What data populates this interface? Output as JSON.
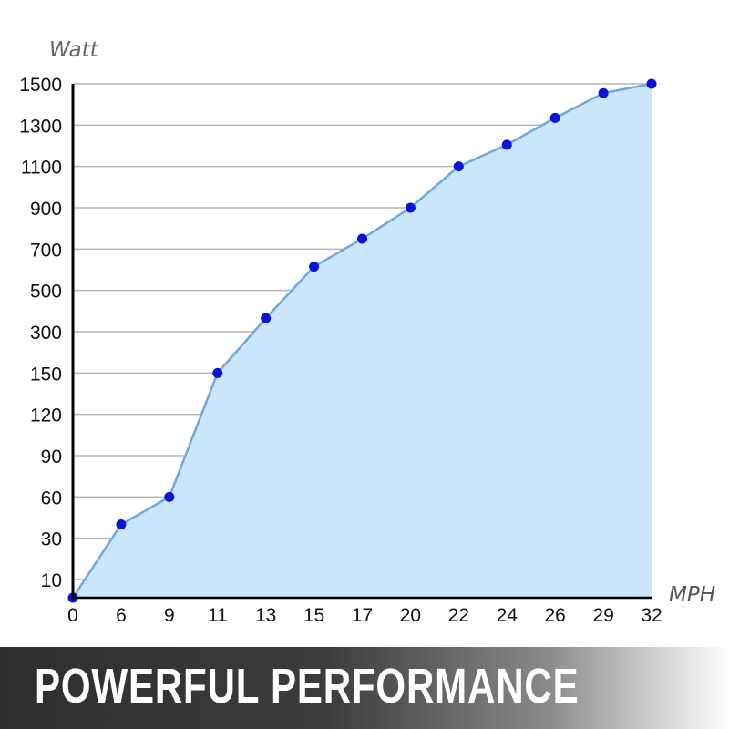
{
  "chart_data": {
    "type": "area",
    "ylabel": "Watt",
    "xlabel": "MPH",
    "x": [
      "0",
      "6",
      "9",
      "11",
      "13",
      "15",
      "17",
      "20",
      "22",
      "24",
      "26",
      "29",
      "32"
    ],
    "y_ticks": [
      10,
      30,
      60,
      90,
      120,
      150,
      300,
      500,
      700,
      900,
      1100,
      1300,
      1500
    ],
    "values": [
      0,
      40,
      60,
      150,
      365,
      615,
      750,
      900,
      1100,
      1205,
      1335,
      1455,
      1500
    ],
    "grid": true,
    "colors": {
      "fill": "#c9e6fb",
      "line": "#6fa8dc",
      "marker": "#0a14d6",
      "grid": "#b5b5b5",
      "axis": "#000000"
    }
  },
  "banner": {
    "text": "POWERFUL PERFORMANCE"
  }
}
